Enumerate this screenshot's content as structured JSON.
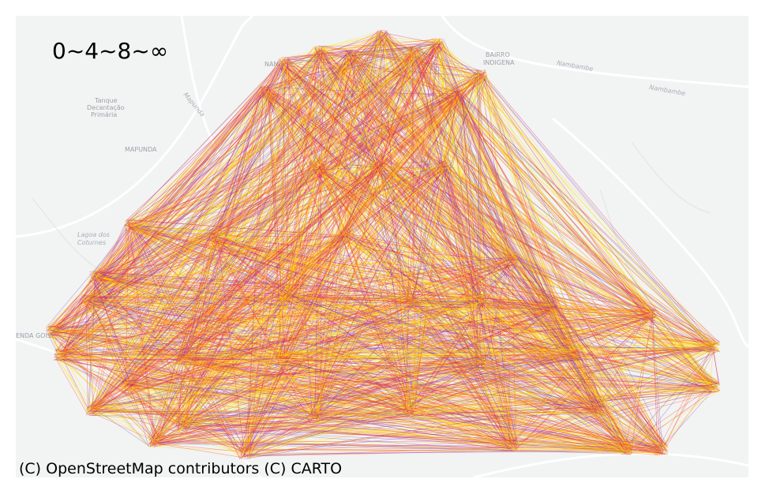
{
  "legend": "0~4~8~∞",
  "attribution": "(C) OpenStreetMap contributors (C) CARTO",
  "map_labels": {
    "nango": "NANGO",
    "bairro_1": "BAIRRO",
    "bairro_2": "INDIGENA",
    "nambambe_1": "Nambambe",
    "nambambe_2": "Nambambe",
    "tanque_1": "Tanque",
    "tanque_2": "Decantação",
    "tanque_3": "Primária",
    "mapunda_area": "MAPUNDA",
    "mapunda_road": "Mapunda",
    "lagoa_1": "Lagoa dos",
    "lagoa_2": "Coturnes",
    "enda_gois": "ENDA GOIS"
  }
}
